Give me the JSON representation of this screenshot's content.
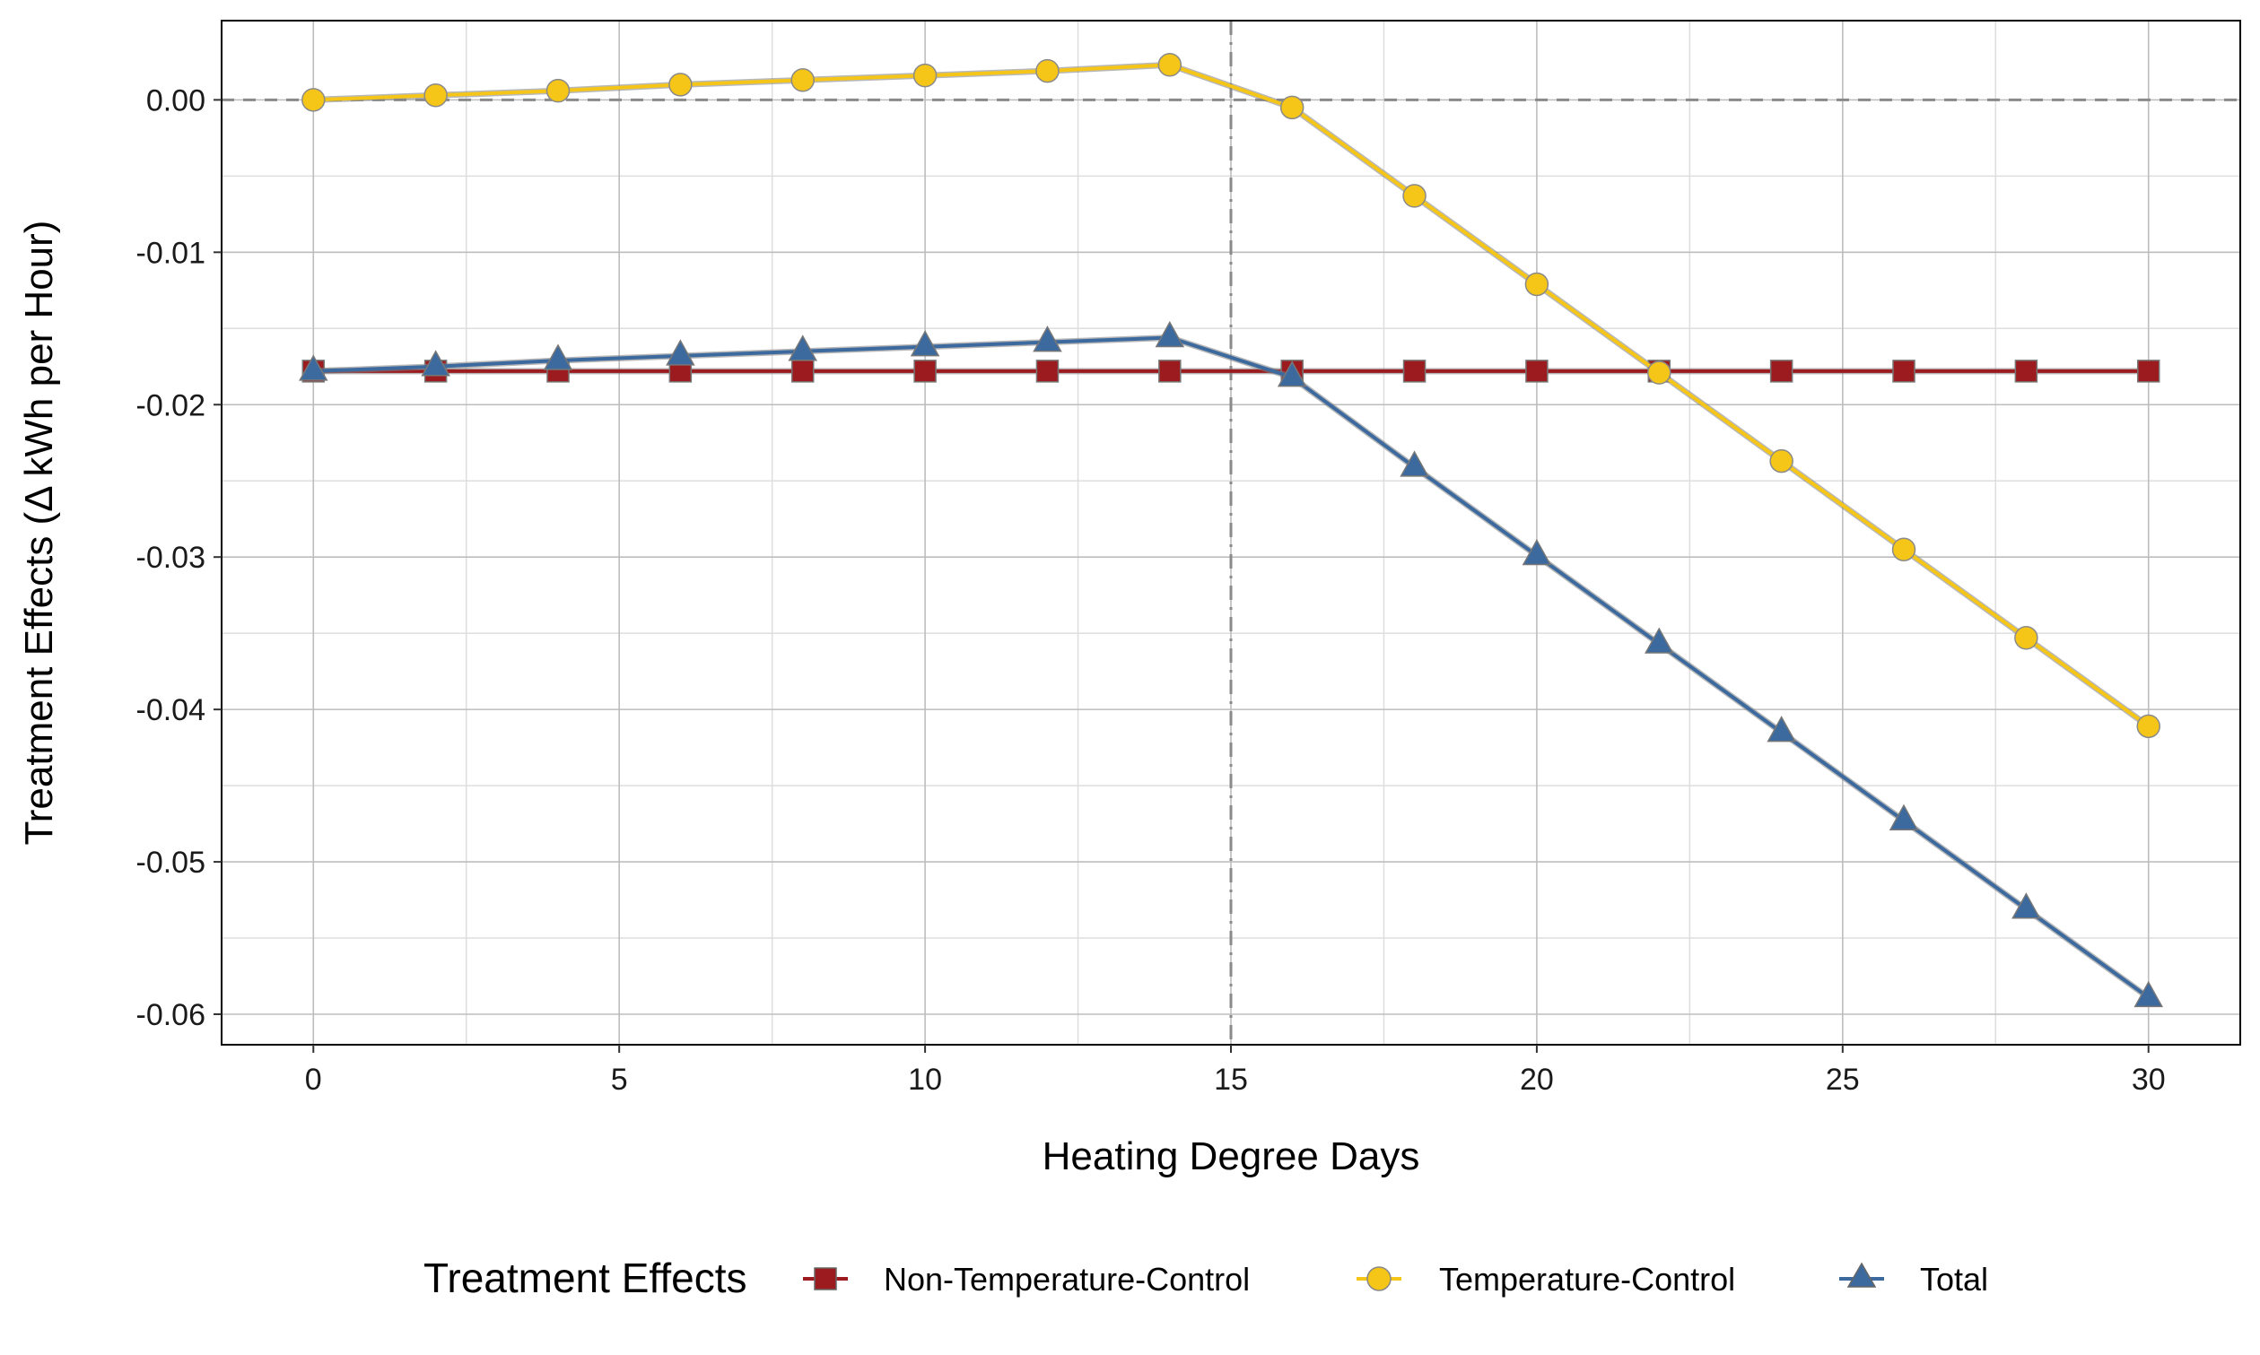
{
  "chart_data": {
    "type": "line",
    "xlabel": "Heating Degree Days",
    "ylabel": "Treatment Effects (Δ kWh per Hour)",
    "xlim": [
      -1.5,
      31.5
    ],
    "ylim": [
      -0.062,
      0.0052
    ],
    "x_ticks": [
      0,
      5,
      10,
      15,
      20,
      25,
      30
    ],
    "x_tick_labels": [
      "0",
      "5",
      "10",
      "15",
      "20",
      "25",
      "30"
    ],
    "y_ticks": [
      0.0,
      -0.01,
      -0.02,
      -0.03,
      -0.04,
      -0.05,
      -0.06
    ],
    "y_tick_labels": [
      "0.00",
      "-0.01",
      "-0.02",
      "-0.03",
      "-0.04",
      "-0.05",
      "-0.06"
    ],
    "grid": true,
    "reference_lines": {
      "hline": 0,
      "vline": 15
    },
    "legend": {
      "title": "Treatment Effects",
      "position": "bottom"
    },
    "x": [
      0,
      2,
      4,
      6,
      8,
      10,
      12,
      14,
      16,
      18,
      20,
      22,
      24,
      26,
      28,
      30
    ],
    "series": [
      {
        "name": "Non-Temperature-Control",
        "marker": "square",
        "color": "#9b1b1e",
        "values": [
          -0.0178,
          -0.0178,
          -0.0178,
          -0.0178,
          -0.0178,
          -0.0178,
          -0.0178,
          -0.0178,
          -0.0178,
          -0.0178,
          -0.0178,
          -0.0178,
          -0.0178,
          -0.0178,
          -0.0178,
          -0.0178
        ]
      },
      {
        "name": "Temperature-Control",
        "marker": "circle",
        "color": "#f5c518",
        "values": [
          0.0,
          0.0003,
          0.0006,
          0.001,
          0.0013,
          0.0016,
          0.0019,
          0.0023,
          -0.0005,
          -0.0063,
          -0.0121,
          -0.0179,
          -0.0237,
          -0.0295,
          -0.0353,
          -0.0411
        ]
      },
      {
        "name": "Total",
        "marker": "triangle",
        "color": "#3d6a9e",
        "values": [
          -0.0178,
          -0.0175,
          -0.0171,
          -0.0168,
          -0.0165,
          -0.0162,
          -0.0159,
          -0.0156,
          -0.0182,
          -0.0241,
          -0.0299,
          -0.0357,
          -0.0415,
          -0.0473,
          -0.0531,
          -0.0589
        ]
      }
    ]
  }
}
